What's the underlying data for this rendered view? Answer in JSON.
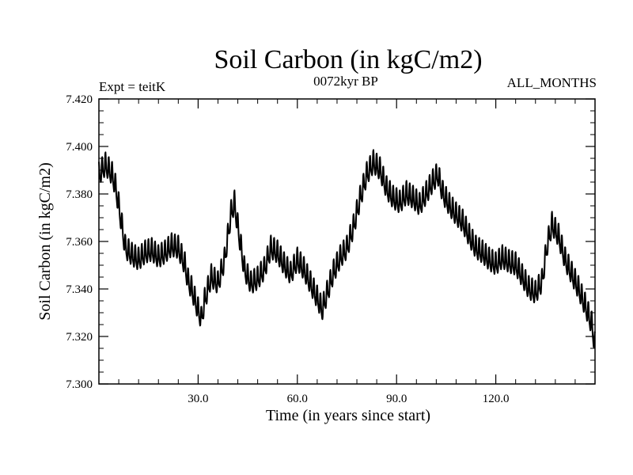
{
  "chart_data": {
    "type": "line",
    "title": "Soil Carbon (in kgC/m2)",
    "subtitle_left": "Expt = teitK",
    "subtitle_center": "0072kyr BP",
    "subtitle_right": "ALL_MONTHS",
    "xlabel": "Time (in years since start)",
    "ylabel": "Soil Carbon (in kgC/m2)",
    "xlim": [
      0,
      150
    ],
    "ylim": [
      7.3,
      7.42
    ],
    "x_ticks": [
      30,
      60,
      90,
      120
    ],
    "x_tick_labels": [
      "30.0",
      "60.0",
      "90.0",
      "120.0"
    ],
    "y_ticks": [
      7.3,
      7.32,
      7.34,
      7.36,
      7.38,
      7.4,
      7.42
    ],
    "y_tick_labels": [
      "7.300",
      "7.320",
      "7.340",
      "7.360",
      "7.380",
      "7.400",
      "7.420"
    ],
    "series": [
      {
        "name": "Soil Carbon",
        "annual_cycle_amplitude": 0.0045,
        "x": [
          0,
          2,
          4,
          5,
          6,
          7,
          8,
          10,
          12,
          14,
          16,
          18,
          20,
          22,
          24,
          26,
          27,
          28,
          30,
          31,
          32,
          34,
          36,
          38,
          40,
          41,
          42,
          44,
          46,
          48,
          50,
          52,
          54,
          56,
          58,
          60,
          62,
          64,
          66,
          67.5,
          69,
          71,
          73,
          75,
          77,
          79,
          81,
          83,
          85,
          87,
          89,
          91,
          93,
          95,
          97,
          99,
          101,
          102.5,
          104,
          106,
          108,
          110,
          112,
          114,
          116,
          118,
          120,
          122,
          124,
          126,
          128,
          130,
          132,
          134,
          135.5,
          137,
          139,
          141,
          143,
          145,
          147,
          149,
          150
        ],
        "values": [
          7.388,
          7.392,
          7.388,
          7.383,
          7.375,
          7.366,
          7.357,
          7.354,
          7.352,
          7.355,
          7.356,
          7.353,
          7.355,
          7.358,
          7.357,
          7.35,
          7.343,
          7.34,
          7.331,
          7.327,
          7.335,
          7.345,
          7.342,
          7.352,
          7.372,
          7.376,
          7.366,
          7.348,
          7.342,
          7.344,
          7.348,
          7.357,
          7.355,
          7.35,
          7.346,
          7.352,
          7.348,
          7.342,
          7.336,
          7.331,
          7.338,
          7.347,
          7.353,
          7.357,
          7.366,
          7.378,
          7.388,
          7.393,
          7.39,
          7.382,
          7.378,
          7.376,
          7.38,
          7.378,
          7.375,
          7.38,
          7.385,
          7.388,
          7.38,
          7.375,
          7.371,
          7.368,
          7.362,
          7.357,
          7.355,
          7.352,
          7.35,
          7.353,
          7.351,
          7.35,
          7.345,
          7.34,
          7.338,
          7.343,
          7.358,
          7.367,
          7.362,
          7.352,
          7.346,
          7.34,
          7.333,
          7.325,
          7.316
        ]
      }
    ]
  }
}
